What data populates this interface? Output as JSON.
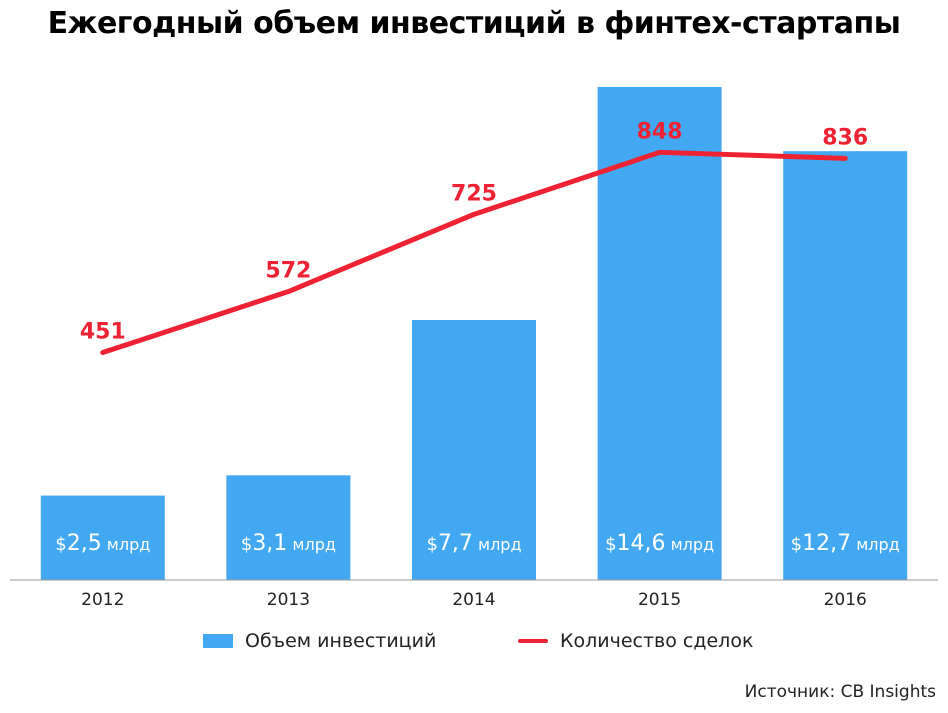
{
  "title": "Ежегодный объем инвестиций в финтех-стартапы",
  "source": "Источник: CB Insights",
  "legend": {
    "bars_label": "Объем инвестиций",
    "line_label": "Количество сделок"
  },
  "colors": {
    "bar": "#42a8f2",
    "line": "#ef2233",
    "bar_label": "#ffffff",
    "axis": "#999999"
  },
  "chart_data": {
    "type": "bar",
    "categories": [
      "2012",
      "2013",
      "2014",
      "2015",
      "2016"
    ],
    "series": [
      {
        "type": "bar",
        "values": [
          2.5,
          3.1,
          7.7,
          14.6,
          12.7
        ],
        "labels": [
          "2,5",
          "3,1",
          "7,7",
          "14,6",
          "12,7"
        ],
        "unit_prefix": "$",
        "unit_suffix": "млрд"
      },
      {
        "type": "line",
        "values": [
          451,
          572,
          725,
          848,
          836
        ],
        "labels": [
          "451",
          "572",
          "725",
          "848",
          "836"
        ]
      }
    ],
    "bar_ylim": [
      0,
      15
    ],
    "line_ylim": [
      0,
      1150
    ],
    "grid": false,
    "legend_position": "bottom"
  }
}
